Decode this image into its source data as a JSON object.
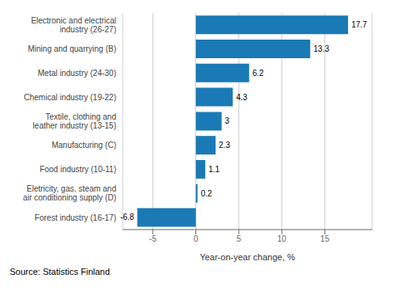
{
  "chart_data": {
    "type": "bar",
    "orientation": "horizontal",
    "categories": [
      "Forest industry (16-17)",
      "Eletricity, gas, steam and\nair conditioning supply (D)",
      "Food industry (10-11)",
      "Manufacturing (C)",
      "Textile, clothing and\nleather industry (13-15)",
      "Chemical industry (19-22)",
      "Metal industry (24-30)",
      "Mining and quarrying (B)",
      "Electronic and electrical\nindustry (26-27)"
    ],
    "values": [
      -6.8,
      0.2,
      1.1,
      2.3,
      3.0,
      4.3,
      6.2,
      13.3,
      17.7
    ],
    "color": "#1a7ab5",
    "xlabel": "Year-on-year change, %",
    "annotation": "Source: Statistics Finland",
    "xlim": [
      -8.5,
      20.5
    ],
    "xticks": [
      -5,
      0,
      5,
      10,
      15
    ],
    "grid": true,
    "data_labels": true
  }
}
